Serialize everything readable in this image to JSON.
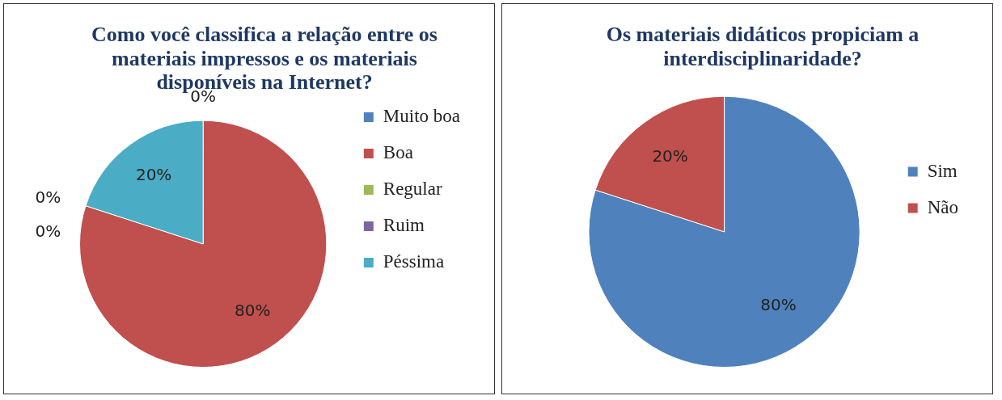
{
  "chart_data": [
    {
      "type": "pie",
      "title": "Como você classifica a relação entre os materiais impressos e os materiais disponíveis na Internet?",
      "categories": [
        "Muito boa",
        "Boa",
        "Regular",
        "Ruim",
        "Péssima"
      ],
      "values": [
        0,
        80,
        0,
        0,
        20
      ],
      "colors": [
        "#4f81bd",
        "#c0504d",
        "#9bbb59",
        "#8064a2",
        "#4bacc6"
      ],
      "value_labels": [
        "0%",
        "80%",
        "0%",
        "0%",
        "20%"
      ],
      "legend": "right"
    },
    {
      "type": "pie",
      "title": "Os materiais didáticos propiciam a interdisciplinaridade?",
      "categories": [
        "Sim",
        "Não"
      ],
      "values": [
        80,
        20
      ],
      "colors": [
        "#4f81bd",
        "#c0504d"
      ],
      "value_labels": [
        "80%",
        "20%"
      ],
      "legend": "right"
    }
  ]
}
